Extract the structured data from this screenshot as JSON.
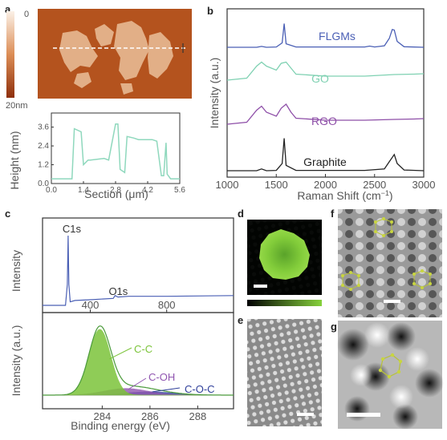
{
  "panels": {
    "a": "a",
    "b": "b",
    "c": "c",
    "d": "d",
    "e": "e",
    "f": "f",
    "g": "g"
  },
  "afm": {
    "scale_top": "0",
    "scale_bottom": "20nm",
    "ylabel": "Height (nm)",
    "xlabel": "Section (μm)",
    "yticks": [
      "0.0",
      "1.2",
      "2.4",
      "3.6"
    ],
    "xticks": [
      "0.0",
      "1.4",
      "2.8",
      "4.2",
      "5.6"
    ]
  },
  "xps": {
    "ylabel_top": "Intensity",
    "ylabel_bottom": "Intensity (a.u.)",
    "xlabel": "Binding energy (eV)",
    "top_xticks": [
      "400",
      "800"
    ],
    "bottom_xticks": [
      "284",
      "286",
      "288"
    ],
    "labels": {
      "c1s": "C1s",
      "o1s": "O1s",
      "cc": "C-C",
      "coh": "C-OH",
      "coc": "C-O-C"
    }
  },
  "colors": {
    "fl": "#4a5fb5",
    "go": "#7fd1b2",
    "rgo": "#8e4fa8",
    "graphite": "#222222",
    "afm_bg": "#b4531e",
    "afm_flake": "#e7b993",
    "afm_profile": "#8fd8bd",
    "cc": "#7cc43a",
    "coh": "#9055b0",
    "coc": "#2f3f9a",
    "xps_line": "#4a5fb5",
    "fluor": "#86d13c"
  },
  "chart_data": [
    {
      "type": "line",
      "panel": "a",
      "xlabel": "Section (μm)",
      "ylabel": "Height (nm)",
      "xlim": [
        0,
        5.6
      ],
      "ylim": [
        0,
        4.5
      ],
      "series": [
        {
          "x": [
            0.0,
            0.5,
            0.9,
            1.0,
            1.3,
            1.4,
            1.6,
            1.7,
            2.3,
            2.5,
            2.8,
            2.9,
            3.0,
            3.2,
            3.3,
            3.6,
            3.8,
            4.2,
            4.4,
            4.6,
            4.8,
            4.9,
            5.0,
            5.05,
            5.2,
            5.6
          ],
          "y": [
            0.3,
            0.3,
            0.3,
            3.5,
            3.3,
            1.2,
            1.5,
            1.5,
            1.6,
            1.5,
            3.8,
            3.8,
            0.9,
            0.7,
            3.0,
            2.9,
            2.8,
            2.8,
            2.8,
            2.7,
            0.5,
            0.5,
            2.6,
            0.6,
            0.3,
            0.3
          ]
        }
      ]
    },
    {
      "type": "line",
      "panel": "b",
      "xlabel": "Raman Shift (cm⁻¹)",
      "ylabel": "Intensity (a.u.)",
      "xlim": [
        1000,
        3000
      ],
      "xticks": [
        1000,
        1500,
        2000,
        2500,
        3000
      ],
      "series": [
        {
          "name": "FLGMs",
          "x": [
            1000,
            1300,
            1350,
            1400,
            1500,
            1560,
            1580,
            1600,
            1700,
            2000,
            2400,
            2450,
            2500,
            2600,
            2650,
            2680,
            2700,
            2730,
            2800,
            3000
          ],
          "y": [
            0.0,
            0.0,
            0.03,
            0.0,
            0.01,
            0.15,
            0.8,
            0.12,
            0.01,
            0.01,
            0.01,
            0.04,
            0.01,
            0.05,
            0.3,
            0.6,
            0.58,
            0.2,
            0.02,
            0.0
          ]
        },
        {
          "name": "GO",
          "x": [
            1000,
            1200,
            1300,
            1350,
            1400,
            1500,
            1550,
            1600,
            1650,
            1700,
            2000,
            2400,
            2700,
            2900,
            3000
          ],
          "y": [
            0.1,
            0.15,
            0.45,
            0.55,
            0.45,
            0.35,
            0.52,
            0.55,
            0.4,
            0.25,
            0.2,
            0.2,
            0.24,
            0.25,
            0.26
          ]
        },
        {
          "name": "RGO",
          "x": [
            1000,
            1200,
            1300,
            1350,
            1400,
            1500,
            1550,
            1600,
            1650,
            1700,
            2000,
            2400,
            2700,
            2900,
            3000
          ],
          "y": [
            0.1,
            0.15,
            0.45,
            0.55,
            0.4,
            0.3,
            0.5,
            0.6,
            0.4,
            0.25,
            0.2,
            0.2,
            0.22,
            0.23,
            0.24
          ]
        },
        {
          "name": "Graphite",
          "x": [
            1000,
            1300,
            1350,
            1400,
            1500,
            1560,
            1580,
            1600,
            1700,
            2000,
            2400,
            2600,
            2650,
            2700,
            2730,
            2800,
            3000
          ],
          "y": [
            0.0,
            0.0,
            0.05,
            0.0,
            0.01,
            0.2,
            0.9,
            0.15,
            0.01,
            0.01,
            0.01,
            0.05,
            0.25,
            0.45,
            0.2,
            0.02,
            0.0
          ]
        }
      ]
    },
    {
      "type": "line",
      "panel": "c-survey",
      "ylabel": "Intensity",
      "xlim": [
        150,
        1150
      ],
      "xticks": [
        400,
        800
      ],
      "series": [
        {
          "x": [
            150,
            270,
            280,
            284,
            288,
            295,
            320,
            400,
            520,
            530,
            545,
            600,
            800,
            1150
          ],
          "y": [
            0.0,
            0.0,
            0.3,
            1.0,
            0.3,
            0.05,
            0.07,
            0.08,
            0.1,
            0.14,
            0.12,
            0.13,
            0.13,
            0.14
          ]
        }
      ]
    },
    {
      "type": "area",
      "panel": "c-C1s",
      "xlabel": "Binding energy (eV)",
      "ylabel": "Intensity (a.u.)",
      "xlim": [
        281.5,
        289.5
      ],
      "xticks": [
        284,
        286,
        288
      ],
      "series": [
        {
          "name": "C-C",
          "center": 283.9,
          "width": 0.45,
          "height": 1.0
        },
        {
          "name": "C-OH",
          "center": 285.0,
          "width": 0.9,
          "height": 0.1
        },
        {
          "name": "C-O-C",
          "center": 286.0,
          "width": 1.0,
          "height": 0.05
        }
      ]
    }
  ]
}
